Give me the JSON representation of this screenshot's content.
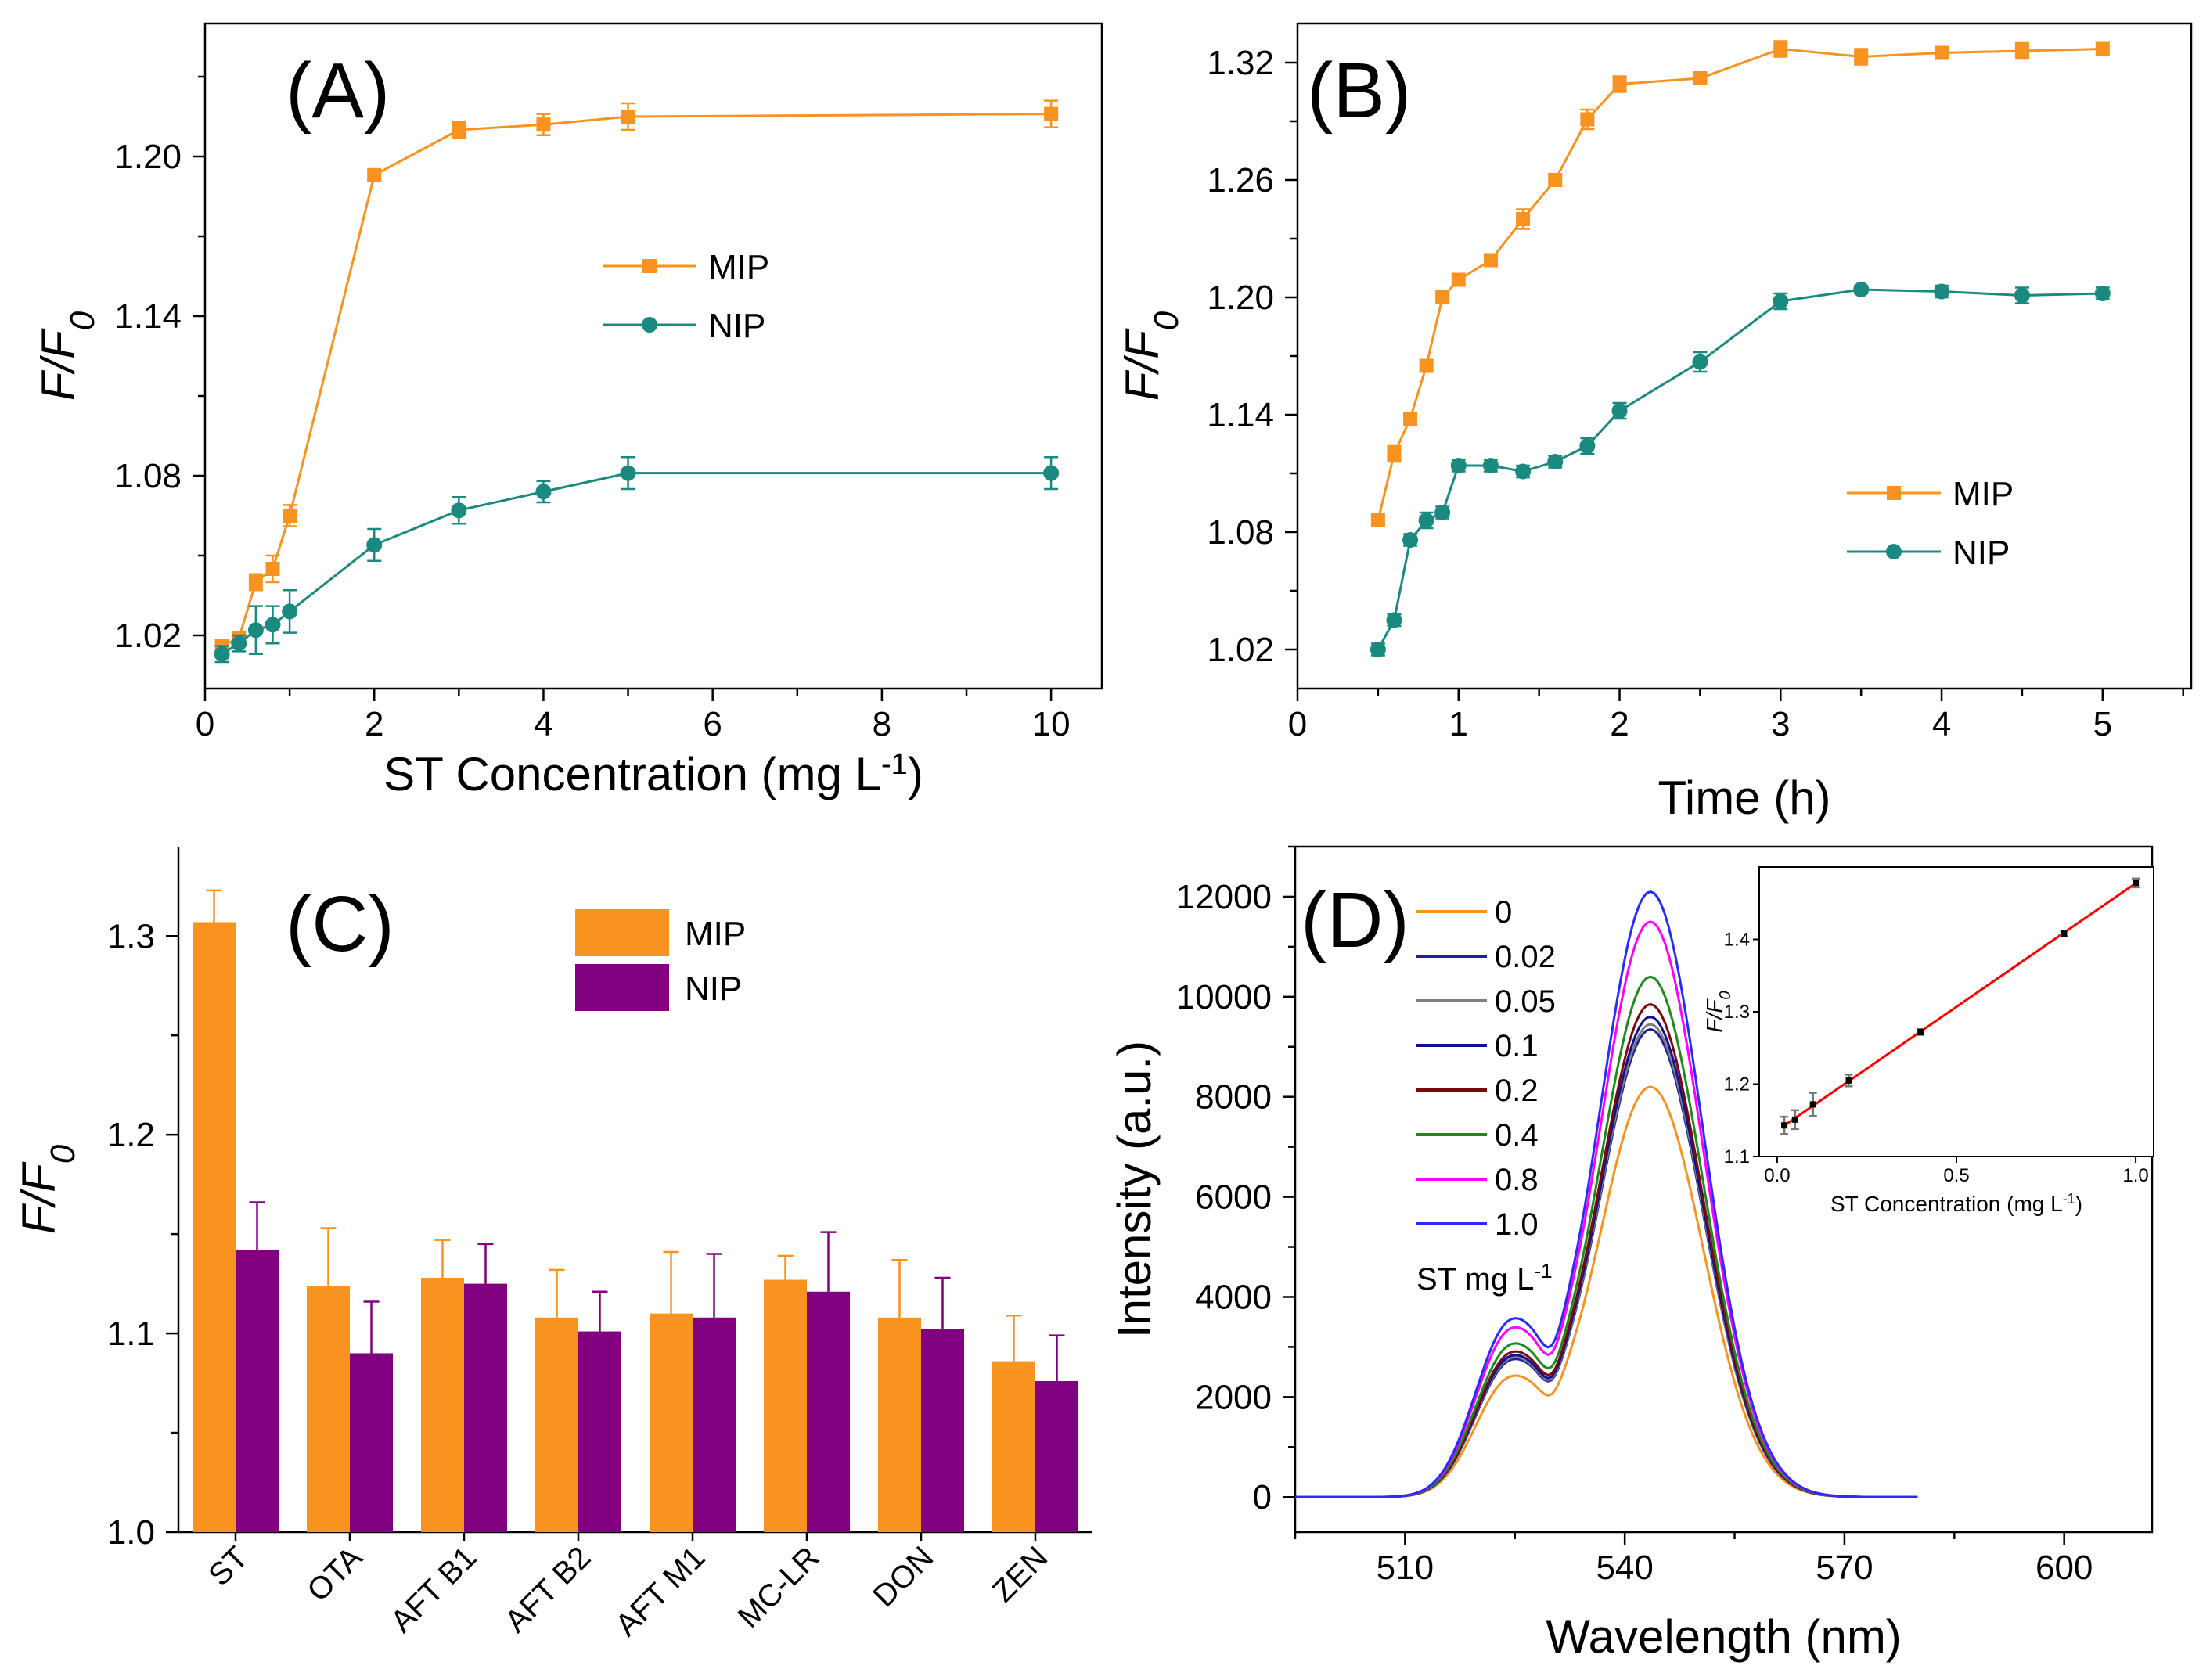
{
  "chart_data": [
    {
      "id": "A",
      "type": "line",
      "panel_label": "(A)",
      "xlabel": "ST Concentration (mg L",
      "xlabel_sup": "-1",
      "xlabel_end": ")",
      "ylabel": "F/F",
      "ylabel_sub": "0",
      "xlim": [
        0,
        10.6
      ],
      "ylim": [
        1.0,
        1.25
      ],
      "xticks": [
        0,
        2,
        4,
        6,
        8,
        10
      ],
      "yticks": [
        1.02,
        1.08,
        1.14,
        1.2
      ],
      "ytick_labels": [
        "1.02",
        "1.08",
        "1.14",
        "1.20"
      ],
      "legend": [
        "MIP",
        "NIP"
      ],
      "series": [
        {
          "name": "MIP",
          "color": "#F7931E",
          "marker": "square",
          "x": [
            0.2,
            0.4,
            0.6,
            0.8,
            1,
            2,
            3,
            4,
            5,
            10
          ],
          "y": [
            1.016,
            1.019,
            1.04,
            1.045,
            1.065,
            1.193,
            1.21,
            1.212,
            1.215,
            1.216
          ],
          "err": [
            0.002,
            0.002,
            0.003,
            0.005,
            0.004,
            0.002,
            0.003,
            0.004,
            0.005,
            0.005
          ]
        },
        {
          "name": "NIP",
          "color": "#1A8A80",
          "marker": "circle",
          "x": [
            0.2,
            0.4,
            0.6,
            0.8,
            1,
            2,
            3,
            4,
            5,
            10
          ],
          "y": [
            1.013,
            1.017,
            1.022,
            1.024,
            1.029,
            1.054,
            1.067,
            1.074,
            1.081,
            1.081
          ],
          "err": [
            0.003,
            0.003,
            0.009,
            0.007,
            0.008,
            0.006,
            0.005,
            0.004,
            0.006,
            0.006
          ]
        }
      ]
    },
    {
      "id": "B",
      "type": "line",
      "panel_label": "(B)",
      "xlabel": "Time (h)",
      "ylabel": "F/F",
      "ylabel_sub": "0",
      "xlim": [
        0,
        5.55
      ],
      "ylim": [
        1.0,
        1.34
      ],
      "xticks": [
        0,
        1,
        2,
        3,
        4,
        5
      ],
      "yticks": [
        1.02,
        1.08,
        1.14,
        1.2,
        1.26,
        1.32
      ],
      "ytick_labels": [
        "1.02",
        "1.08",
        "1.14",
        "1.20",
        "1.26",
        "1.32"
      ],
      "legend": [
        "MIP",
        "NIP"
      ],
      "series": [
        {
          "name": "MIP",
          "color": "#F7931E",
          "marker": "square",
          "x": [
            0.5,
            0.6,
            0.7,
            0.8,
            0.9,
            1.0,
            1.2,
            1.4,
            1.6,
            1.8,
            2.0,
            2.5,
            3.0,
            3.5,
            4.0,
            4.5,
            5.0
          ],
          "y": [
            1.086,
            1.12,
            1.138,
            1.165,
            1.2,
            1.209,
            1.219,
            1.24,
            1.26,
            1.291,
            1.309,
            1.312,
            1.327,
            1.323,
            1.325,
            1.326,
            1.327
          ],
          "err": [
            0.002,
            0.004,
            0.003,
            0.003,
            0.003,
            0.003,
            0.003,
            0.005,
            0.003,
            0.005,
            0.004,
            0.002,
            0.004,
            0.004,
            0.003,
            0.004,
            0.003
          ]
        },
        {
          "name": "NIP",
          "color": "#1A8A80",
          "marker": "circle",
          "x": [
            0.5,
            0.6,
            0.7,
            0.8,
            0.9,
            1.0,
            1.2,
            1.4,
            1.6,
            1.8,
            2.0,
            2.5,
            3.0,
            3.5,
            4.0,
            4.5,
            5.0
          ],
          "y": [
            1.02,
            1.035,
            1.076,
            1.086,
            1.09,
            1.114,
            1.114,
            1.111,
            1.116,
            1.124,
            1.142,
            1.167,
            1.198,
            1.204,
            1.203,
            1.201,
            1.202
          ],
          "err": [
            0.003,
            0.003,
            0.003,
            0.004,
            0.003,
            0.003,
            0.003,
            0.003,
            0.003,
            0.004,
            0.004,
            0.005,
            0.004,
            0.002,
            0.003,
            0.004,
            0.003
          ]
        }
      ]
    },
    {
      "id": "C",
      "type": "bar",
      "panel_label": "(C)",
      "ylabel": "F/F",
      "ylabel_sub": "0",
      "ylim": [
        1.0,
        1.345
      ],
      "yticks": [
        1.0,
        1.1,
        1.2,
        1.3
      ],
      "ytick_labels": [
        "1.0",
        "1.1",
        "1.2",
        "1.3"
      ],
      "categories": [
        "ST",
        "OTA",
        "AFT B1",
        "AFT B2",
        "AFT M1",
        "MC-LR",
        "DON",
        "ZEN"
      ],
      "legend": [
        "MIP",
        "NIP"
      ],
      "series": [
        {
          "name": "MIP",
          "color": "#F7931E",
          "values": [
            1.307,
            1.124,
            1.128,
            1.108,
            1.11,
            1.127,
            1.108,
            1.086
          ],
          "err": [
            0.016,
            0.029,
            0.019,
            0.024,
            0.031,
            0.012,
            0.029,
            0.023
          ]
        },
        {
          "name": "NIP",
          "color": "#800080",
          "values": [
            1.142,
            1.09,
            1.125,
            1.101,
            1.108,
            1.121,
            1.102,
            1.076
          ],
          "err": [
            0.024,
            0.026,
            0.02,
            0.02,
            0.032,
            0.03,
            0.026,
            0.023
          ]
        }
      ]
    },
    {
      "id": "D",
      "type": "line",
      "panel_label": "(D)",
      "xlabel": "Wavelength (nm)",
      "ylabel": "Intensity (a.u.)",
      "xlim": [
        495,
        612
      ],
      "ylim": [
        -700,
        13000
      ],
      "xticks": [
        510,
        540,
        570,
        600
      ],
      "yticks": [
        0,
        2000,
        4000,
        6000,
        8000,
        10000,
        12000
      ],
      "legend_title": "ST mg L",
      "legend_title_sup": "-1",
      "series": [
        {
          "name": "0",
          "color": "#F7931E",
          "peak": 8200,
          "shoulder": 2420
        },
        {
          "name": "0.02",
          "color": "#1F1FA0",
          "peak": 9350,
          "shoulder": 2750
        },
        {
          "name": "0.05",
          "color": "#7F7F7F",
          "peak": 9450,
          "shoulder": 2790
        },
        {
          "name": "0.1",
          "color": "#10109A",
          "peak": 9600,
          "shoulder": 2830
        },
        {
          "name": "0.2",
          "color": "#7A0A0A",
          "peak": 9850,
          "shoulder": 2900
        },
        {
          "name": "0.4",
          "color": "#1E8A1E",
          "peak": 10400,
          "shoulder": 3060
        },
        {
          "name": "0.8",
          "color": "#FF00FF",
          "peak": 11500,
          "shoulder": 3380
        },
        {
          "name": "1.0",
          "color": "#2A2AFF",
          "peak": 12100,
          "shoulder": 3560
        }
      ],
      "inset": {
        "type": "scatter",
        "xlabel": "ST Concentration (mg L",
        "xlabel_sup": "-1",
        "xlabel_end": ")",
        "ylabel": "F/F",
        "ylabel_sub": "0",
        "xlim": [
          -0.05,
          1.05
        ],
        "ylim": [
          1.1,
          1.5
        ],
        "xticks": [
          0.0,
          0.5,
          1.0
        ],
        "xtick_labels": [
          "0.0",
          "0.5",
          "1.0"
        ],
        "yticks": [
          1.1,
          1.2,
          1.3,
          1.4
        ],
        "ytick_labels": [
          "1.1",
          "1.2",
          "1.3",
          "1.4"
        ],
        "points": {
          "x": [
            0.02,
            0.05,
            0.1,
            0.2,
            0.4,
            0.8,
            1.0
          ],
          "y": [
            1.143,
            1.151,
            1.172,
            1.205,
            1.272,
            1.408,
            1.478
          ],
          "err": [
            0.012,
            0.013,
            0.016,
            0.008,
            0.004,
            0.004,
            0.006
          ]
        },
        "fit": {
          "slope": 0.3416,
          "intercept": 1.136,
          "color": "#FF0000"
        }
      }
    }
  ]
}
